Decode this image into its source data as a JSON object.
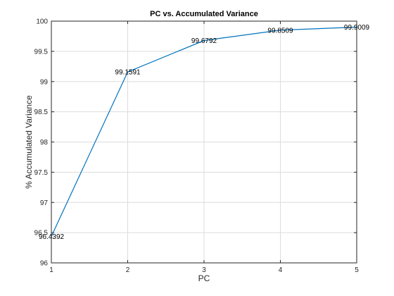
{
  "chart_data": {
    "type": "line",
    "title": "PC vs. Accumulated Variance",
    "xlabel": "PC",
    "ylabel": "% Accumulated Variance",
    "x": [
      1,
      2,
      3,
      4,
      5
    ],
    "series": [
      {
        "values": [
          96.4392,
          99.1591,
          99.6792,
          99.8509,
          99.9009
        ]
      }
    ],
    "data_labels": [
      "96.4392",
      "99.1591",
      "99.6792",
      "99.8509",
      "99.9009"
    ],
    "xlim": [
      1,
      5
    ],
    "ylim": [
      96,
      100
    ],
    "xticks": [
      1,
      2,
      3,
      4,
      5
    ],
    "xtick_labels": [
      "1",
      "2",
      "3",
      "4",
      "5"
    ],
    "yticks": [
      96,
      96.5,
      97,
      97.5,
      98,
      98.5,
      99,
      99.5,
      100
    ],
    "ytick_labels": [
      "96",
      "96.5",
      "97",
      "97.5",
      "98",
      "98.5",
      "99",
      "99.5",
      "100"
    ],
    "grid": true,
    "line_color": "#0072bd"
  }
}
